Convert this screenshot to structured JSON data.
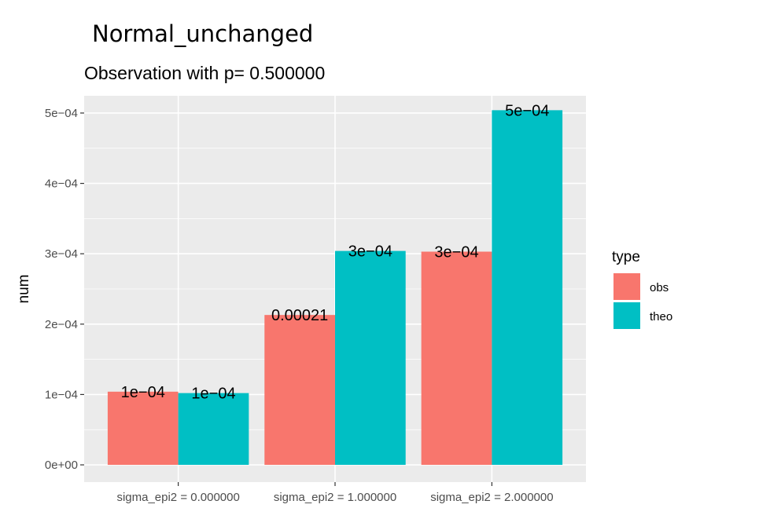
{
  "chart_data": {
    "type": "bar",
    "title": "Normal_unchanged",
    "subtitle": "Observation with p= 0.500000",
    "xlabel": "",
    "ylabel": "num",
    "categories": [
      "sigma_epi2 = 0.000000",
      "sigma_epi2 = 1.000000",
      "sigma_epi2 = 2.000000"
    ],
    "series": [
      {
        "name": "obs",
        "color": "#F8766D",
        "values": [
          0.000104,
          0.000213,
          0.000303
        ],
        "labels": [
          "1e−04",
          "0.00021",
          "3e−04"
        ]
      },
      {
        "name": "theo",
        "color": "#00BFC4",
        "values": [
          0.000102,
          0.000304,
          0.000504
        ],
        "labels": [
          "1e−04",
          "3e−04",
          "5e−04"
        ]
      }
    ],
    "ylim": [
      -2.45e-05,
      0.0005245
    ],
    "yticks": [
      0,
      0.0001,
      0.0002,
      0.0003,
      0.0004,
      0.0005
    ],
    "ytick_labels": [
      "0e+00",
      "1e−04",
      "2e−04",
      "3e−04",
      "4e−04",
      "5e−04"
    ],
    "grid": true,
    "panel_color": "#EBEBEB",
    "legend": {
      "title": "type",
      "position": "right"
    }
  }
}
